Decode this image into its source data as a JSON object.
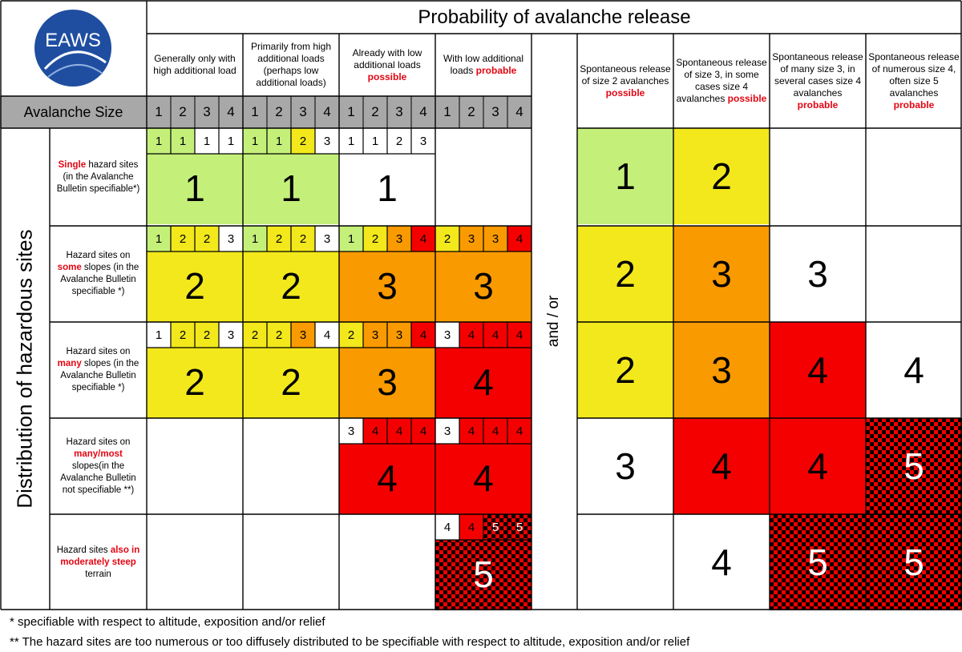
{
  "title": "Probability of avalanche release",
  "logo_text": "EAWS",
  "size_label": "Avalanche Size",
  "distribution_label": "Distribution of hazardous sites",
  "and_or_label": "and / or",
  "size_numbers": [
    "1",
    "2",
    "3",
    "4"
  ],
  "colors": {
    "green": "#c4f07a",
    "yellow": "#f2e81c",
    "orange": "#f99a00",
    "red": "#f40000",
    "white": "#ffffff",
    "gray": "#a8a8a8",
    "accent_red": "#e30613"
  },
  "left_columns": [
    {
      "parts": [
        {
          "t": "Generally only with high additional load",
          "r": false
        }
      ]
    },
    {
      "parts": [
        {
          "t": "Primarily from high additional loads (perhaps low additional loads)",
          "r": false
        }
      ]
    },
    {
      "parts": [
        {
          "t": "Already with low additional loads ",
          "r": false
        },
        {
          "t": "possible",
          "r": true
        }
      ]
    },
    {
      "parts": [
        {
          "t": "With low additional loads ",
          "r": false
        },
        {
          "t": "probable",
          "r": true
        }
      ]
    }
  ],
  "right_columns": [
    {
      "parts": [
        {
          "t": "Spontaneous release of size 2 avalanches ",
          "r": false
        },
        {
          "t": "possible",
          "r": true
        }
      ]
    },
    {
      "parts": [
        {
          "t": "Spontaneous release of size 3, in some cases size 4 avalanches ",
          "r": false
        },
        {
          "t": "possible",
          "r": true
        }
      ]
    },
    {
      "parts": [
        {
          "t": "Spontaneous release of many size 3, in several cases size 4 avalanches ",
          "r": false
        },
        {
          "t": "probable",
          "r": true
        }
      ]
    },
    {
      "parts": [
        {
          "t": "Spontaneous release of numerous size 4, often size 5 avalanches ",
          "r": false
        },
        {
          "t": "probable",
          "r": true
        }
      ]
    }
  ],
  "rows": [
    {
      "parts": [
        {
          "t": "Single",
          "r": true
        },
        {
          "t": " hazard sites (in the Avalanche Bulletin specifiable*)",
          "r": false
        }
      ]
    },
    {
      "parts": [
        {
          "t": "Hazard sites on ",
          "r": false
        },
        {
          "t": "some",
          "r": true
        },
        {
          "t": " slopes (in the Avalanche Bulletin specifiable *)",
          "r": false
        }
      ]
    },
    {
      "parts": [
        {
          "t": "Hazard sites on ",
          "r": false
        },
        {
          "t": "many",
          "r": true
        },
        {
          "t": " slopes (in the Avalanche Bulletin specifiable *)",
          "r": false
        }
      ]
    },
    {
      "parts": [
        {
          "t": "Hazard sites on ",
          "r": false
        },
        {
          "t": "many/most",
          "r": true
        },
        {
          "t": " slopes(in the Avalanche Bulletin not specifiable **)",
          "r": false
        }
      ]
    },
    {
      "parts": [
        {
          "t": "Hazard sites ",
          "r": false
        },
        {
          "t": "also in moderately steep",
          "r": true
        },
        {
          "t": " terrain",
          "r": false
        }
      ]
    }
  ],
  "left_matrix": [
    [
      {
        "level": "1",
        "color": "green",
        "sub": [
          {
            "v": "1",
            "c": "green"
          },
          {
            "v": "1",
            "c": "green"
          },
          {
            "v": "1",
            "c": "white"
          },
          {
            "v": "1",
            "c": "white"
          }
        ]
      },
      {
        "level": "1",
        "color": "green",
        "sub": [
          {
            "v": "1",
            "c": "green"
          },
          {
            "v": "1",
            "c": "green"
          },
          {
            "v": "2",
            "c": "yellow"
          },
          {
            "v": "3",
            "c": "white"
          }
        ]
      },
      {
        "level": "1",
        "color": "white",
        "sub": [
          {
            "v": "1",
            "c": "white"
          },
          {
            "v": "1",
            "c": "white"
          },
          {
            "v": "2",
            "c": "white"
          },
          {
            "v": "3",
            "c": "white"
          }
        ]
      },
      null
    ],
    [
      {
        "level": "2",
        "color": "yellow",
        "sub": [
          {
            "v": "1",
            "c": "green"
          },
          {
            "v": "2",
            "c": "yellow"
          },
          {
            "v": "2",
            "c": "yellow"
          },
          {
            "v": "3",
            "c": "white"
          }
        ]
      },
      {
        "level": "2",
        "color": "yellow",
        "sub": [
          {
            "v": "1",
            "c": "green"
          },
          {
            "v": "2",
            "c": "yellow"
          },
          {
            "v": "2",
            "c": "yellow"
          },
          {
            "v": "3",
            "c": "white"
          }
        ]
      },
      {
        "level": "3",
        "color": "orange",
        "sub": [
          {
            "v": "1",
            "c": "green"
          },
          {
            "v": "2",
            "c": "yellow"
          },
          {
            "v": "3",
            "c": "orange"
          },
          {
            "v": "4",
            "c": "red"
          }
        ]
      },
      {
        "level": "3",
        "color": "orange",
        "sub": [
          {
            "v": "2",
            "c": "yellow"
          },
          {
            "v": "3",
            "c": "orange"
          },
          {
            "v": "3",
            "c": "orange"
          },
          {
            "v": "4",
            "c": "red"
          }
        ]
      }
    ],
    [
      {
        "level": "2",
        "color": "yellow",
        "sub": [
          {
            "v": "1",
            "c": "white"
          },
          {
            "v": "2",
            "c": "yellow"
          },
          {
            "v": "2",
            "c": "yellow"
          },
          {
            "v": "3",
            "c": "white"
          }
        ]
      },
      {
        "level": "2",
        "color": "yellow",
        "sub": [
          {
            "v": "2",
            "c": "yellow"
          },
          {
            "v": "2",
            "c": "yellow"
          },
          {
            "v": "3",
            "c": "orange"
          },
          {
            "v": "4",
            "c": "white"
          }
        ]
      },
      {
        "level": "3",
        "color": "orange",
        "sub": [
          {
            "v": "2",
            "c": "yellow"
          },
          {
            "v": "3",
            "c": "orange"
          },
          {
            "v": "3",
            "c": "orange"
          },
          {
            "v": "4",
            "c": "red"
          }
        ]
      },
      {
        "level": "4",
        "color": "red",
        "sub": [
          {
            "v": "3",
            "c": "white"
          },
          {
            "v": "4",
            "c": "red"
          },
          {
            "v": "4",
            "c": "red"
          },
          {
            "v": "4",
            "c": "red"
          }
        ]
      }
    ],
    [
      null,
      null,
      {
        "level": "4",
        "color": "red",
        "sub": [
          {
            "v": "3",
            "c": "white"
          },
          {
            "v": "4",
            "c": "red"
          },
          {
            "v": "4",
            "c": "red"
          },
          {
            "v": "4",
            "c": "red"
          }
        ]
      },
      {
        "level": "4",
        "color": "red",
        "sub": [
          {
            "v": "3",
            "c": "white"
          },
          {
            "v": "4",
            "c": "red"
          },
          {
            "v": "4",
            "c": "red"
          },
          {
            "v": "4",
            "c": "red"
          }
        ]
      }
    ],
    [
      null,
      null,
      null,
      {
        "level": "5",
        "color": "check",
        "sub": [
          {
            "v": "4",
            "c": "white"
          },
          {
            "v": "4",
            "c": "red"
          },
          {
            "v": "5",
            "c": "check"
          },
          {
            "v": "5",
            "c": "check"
          }
        ]
      }
    ]
  ],
  "right_matrix": [
    [
      {
        "level": "1",
        "color": "green"
      },
      {
        "level": "2",
        "color": "yellow"
      },
      null,
      null
    ],
    [
      {
        "level": "2",
        "color": "yellow"
      },
      {
        "level": "3",
        "color": "orange"
      },
      {
        "level": "3",
        "color": "white"
      },
      null
    ],
    [
      {
        "level": "2",
        "color": "yellow"
      },
      {
        "level": "3",
        "color": "orange"
      },
      {
        "level": "4",
        "color": "red"
      },
      {
        "level": "4",
        "color": "white"
      }
    ],
    [
      {
        "level": "3",
        "color": "white"
      },
      {
        "level": "4",
        "color": "red"
      },
      {
        "level": "4",
        "color": "red"
      },
      {
        "level": "5",
        "color": "check"
      }
    ],
    [
      null,
      {
        "level": "4",
        "color": "white"
      },
      {
        "level": "5",
        "color": "check"
      },
      {
        "level": "5",
        "color": "check"
      }
    ]
  ],
  "footnotes": [
    "*  specifiable with respect to altitude, exposition and/or relief",
    "** The hazard sites are too numerous or too diffusely distributed to be specifiable with respect to altitude, exposition and/or relief"
  ]
}
